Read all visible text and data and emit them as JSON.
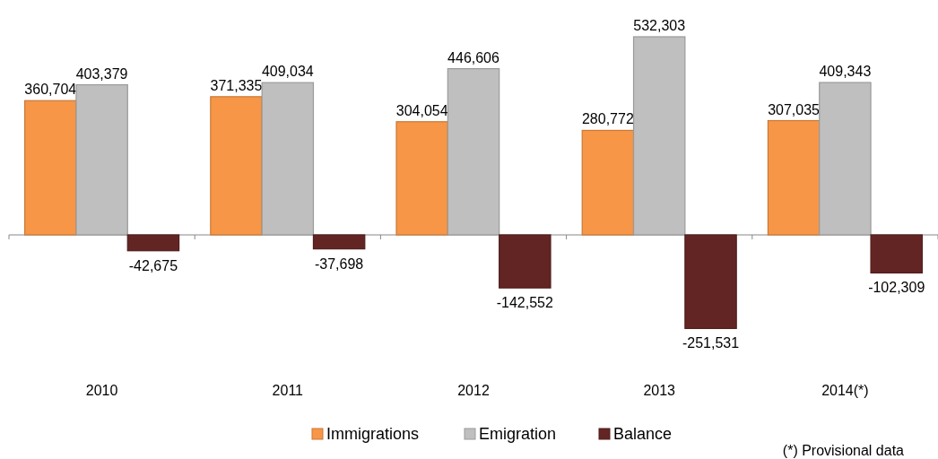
{
  "chart_data": {
    "type": "bar",
    "categories": [
      "2010",
      "2011",
      "2012",
      "2013",
      "2014(*)"
    ],
    "series": [
      {
        "name": "Immigrations",
        "color": "#f79646",
        "values": [
          360704,
          371335,
          304054,
          280772,
          307035
        ],
        "value_labels": [
          "360,704",
          "371,335",
          "304,054",
          "280,772",
          "307,035"
        ]
      },
      {
        "name": "Emigration",
        "color": "#bfbfbf",
        "values": [
          403379,
          409034,
          446606,
          532303,
          409343
        ],
        "value_labels": [
          "403,379",
          "409,034",
          "446,606",
          "532,303",
          "409,343"
        ]
      },
      {
        "name": "Balance",
        "color": "#632523",
        "values": [
          -42675,
          -37698,
          -142552,
          -251531,
          -102309
        ],
        "value_labels": [
          "-42,675",
          "-37,698",
          "-142,552",
          "-251,531",
          "-102,309"
        ]
      }
    ],
    "legend": "bottom",
    "annotations": [
      "(*) Provisional data"
    ]
  }
}
